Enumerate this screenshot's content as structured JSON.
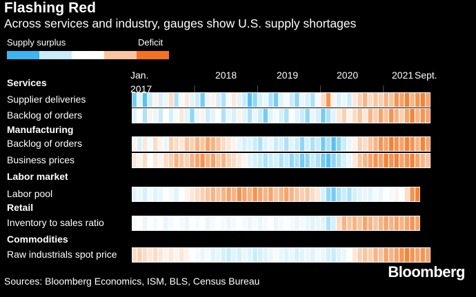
{
  "title": "Flashing Red",
  "subtitle": "Across services and industry, gauges show U.S. supply shortages",
  "legend": {
    "left_label": "Supply surplus",
    "right_label": "Deficit",
    "colors": [
      "#3db5f0",
      "#c9ecfb",
      "#ffffff",
      "#f9c49e",
      "#f5731f"
    ]
  },
  "source": "Sources: Bloomberg Economics, ISM, BLS, Census Bureau",
  "brand": "Bloomberg",
  "chart_data": {
    "type": "heatmap",
    "x_start": "Jan. 2017",
    "x_end": "Sept. 2021",
    "x_ticks": [
      {
        "label": "Jan.",
        "sub": "2017",
        "month_index": 0
      },
      {
        "label": "2018",
        "month_index": 12
      },
      {
        "label": "2019",
        "month_index": 24
      },
      {
        "label": "2020",
        "month_index": 36
      },
      {
        "label": "2021",
        "month_index": 48
      },
      {
        "label": "Sept.",
        "month_index": 56
      }
    ],
    "groups": [
      {
        "name": "Services",
        "rows": [
          {
            "name": "Supplier deliveries",
            "values": [
              -0.8,
              -0.3,
              -0.9,
              -0.5,
              0.1,
              -0.4,
              -0.2,
              0.3,
              -0.6,
              -0.1,
              0.2,
              -0.3,
              -0.5,
              -0.8,
              -0.2,
              0.1,
              -0.4,
              -0.6,
              -0.1,
              0.2,
              -0.3,
              -0.5,
              -0.9,
              -0.7,
              -0.4,
              -0.2,
              -0.6,
              -0.8,
              -0.3,
              -0.1,
              -0.5,
              -0.7,
              -0.2,
              -0.4,
              -0.6,
              -0.1,
              0.3,
              0.8,
              0.1,
              -0.4,
              -0.2,
              -0.5,
              0.2,
              0.4,
              0.6,
              0.3,
              0.5,
              0.4,
              0.6,
              0.5,
              0.8,
              0.7,
              0.9,
              0.6,
              0.8,
              0.9,
              0.7
            ]
          },
          {
            "name": "Backlog of orders",
            "values": [
              -0.3,
              0.0,
              -0.6,
              0.1,
              -0.2,
              -0.5,
              0.0,
              -0.4,
              -0.1,
              0.2,
              -0.3,
              -0.7,
              -0.2,
              0.1,
              -0.5,
              -0.3,
              0.0,
              -0.6,
              -0.2,
              -0.4,
              0.1,
              -0.3,
              -0.6,
              -0.2,
              -0.5,
              -0.8,
              -0.3,
              -0.1,
              -0.4,
              -0.6,
              0.0,
              -0.3,
              -0.5,
              -0.7,
              -0.2,
              -0.4,
              -0.8,
              -0.6,
              -0.3,
              0.2,
              0.4,
              0.1,
              0.3,
              0.5,
              0.2,
              0.6,
              0.4,
              0.7,
              0.5,
              0.8,
              0.6,
              0.4,
              0.7,
              0.9,
              0.6,
              0.8,
              0.7
            ]
          }
        ]
      },
      {
        "name": "Manufacturing",
        "rows": [
          {
            "name": "Backlog of orders",
            "values": [
              0.1,
              -0.4,
              0.2,
              -0.1,
              0.3,
              0.1,
              -0.2,
              0.4,
              0.3,
              0.2,
              0.5,
              0.4,
              0.6,
              0.5,
              0.7,
              0.6,
              0.5,
              0.3,
              0.2,
              0.1,
              -0.2,
              -0.4,
              -0.3,
              -0.5,
              -0.6,
              -0.3,
              -0.2,
              -0.5,
              -0.4,
              -0.6,
              -0.3,
              -0.5,
              -0.7,
              -0.4,
              -0.6,
              -0.5,
              -0.8,
              -0.6,
              -0.9,
              -0.7,
              -0.5,
              -0.2,
              0.1,
              0.4,
              0.3,
              0.5,
              0.6,
              0.8,
              0.7,
              0.9,
              0.8,
              0.7,
              0.9,
              0.8,
              0.6,
              0.9,
              0.7
            ]
          },
          {
            "name": "Business prices",
            "values": [
              0.2,
              0.1,
              0.3,
              0.0,
              0.2,
              0.1,
              0.3,
              0.4,
              0.6,
              0.5,
              0.4,
              0.6,
              0.7,
              0.8,
              0.6,
              0.7,
              0.5,
              0.6,
              0.4,
              0.3,
              0.2,
              0.1,
              -0.3,
              -0.4,
              -0.5,
              -0.6,
              -0.5,
              -0.4,
              -0.6,
              -0.5,
              -0.7,
              -0.6,
              -0.8,
              -0.7,
              -0.5,
              -0.6,
              -0.8,
              -0.9,
              -0.7,
              -0.6,
              -0.4,
              -0.2,
              0.2,
              0.5,
              0.6,
              0.7,
              0.8,
              0.7,
              0.9,
              0.8,
              0.9,
              0.7,
              0.8,
              0.9,
              0.7,
              0.6,
              0.5
            ]
          }
        ]
      },
      {
        "name": "Labor market",
        "rows": [
          {
            "name": "Labor pool",
            "values": [
              -0.3,
              -0.2,
              -0.4,
              -0.1,
              -0.3,
              -0.2,
              0.0,
              -0.1,
              -0.3,
              0.0,
              0.1,
              0.2,
              0.3,
              0.4,
              0.5,
              0.6,
              0.5,
              0.6,
              0.7,
              0.6,
              0.8,
              0.7,
              0.6,
              0.8,
              0.7,
              0.6,
              0.7,
              0.5,
              0.6,
              0.7,
              0.6,
              0.5,
              0.4,
              0.5,
              0.3,
              0.2,
              -0.4,
              -0.7,
              -0.8,
              -0.6,
              -0.5,
              -0.6,
              -0.4,
              -0.3,
              -0.2,
              -0.3,
              -0.1,
              -0.2,
              0.0,
              -0.1,
              0.1,
              0.0,
              0.3,
              0.8,
              0.9
            ]
          }
        ]
      },
      {
        "name": "Retail",
        "rows": [
          {
            "name": "Inventory to sales ratio",
            "values": [
              -0.1,
              0.0,
              -0.2,
              0.0,
              -0.1,
              0.0,
              -0.2,
              -0.1,
              0.0,
              -0.1,
              -0.2,
              0.0,
              -0.1,
              0.0,
              -0.2,
              -0.1,
              0.0,
              -0.1,
              -0.2,
              -0.1,
              0.0,
              -0.1,
              -0.2,
              -0.1,
              -0.2,
              -0.1,
              0.0,
              -0.2,
              -0.1,
              0.0,
              -0.1,
              -0.2,
              -0.1,
              -0.2,
              -0.3,
              -0.2,
              -0.3,
              -0.6,
              -0.4,
              0.3,
              0.6,
              0.5,
              0.6,
              0.5,
              0.7,
              0.6,
              0.5,
              0.6,
              0.7,
              0.6,
              0.7,
              0.6,
              0.7,
              0.8,
              0.7
            ]
          }
        ]
      },
      {
        "name": "Commodities",
        "rows": [
          {
            "name": "Raw industrials spot price",
            "values": [
              0.3,
              0.4,
              0.3,
              0.2,
              0.3,
              0.2,
              0.1,
              0.2,
              0.1,
              0.2,
              0.1,
              0.0,
              -0.1,
              -0.2,
              -0.1,
              -0.3,
              -0.2,
              -0.4,
              -0.5,
              -0.3,
              -0.4,
              -0.2,
              -0.3,
              -0.5,
              -0.4,
              -0.3,
              -0.2,
              -0.1,
              -0.2,
              -0.3,
              -0.2,
              -0.4,
              -0.3,
              -0.2,
              -0.3,
              -0.1,
              -0.2,
              -0.4,
              -0.5,
              -0.3,
              -0.2,
              0.0,
              0.2,
              0.4,
              0.5,
              0.4,
              0.6,
              0.5,
              0.7,
              0.6,
              0.7,
              0.8,
              0.9,
              0.8,
              0.7,
              0.8,
              0.7
            ]
          }
        ]
      }
    ]
  }
}
